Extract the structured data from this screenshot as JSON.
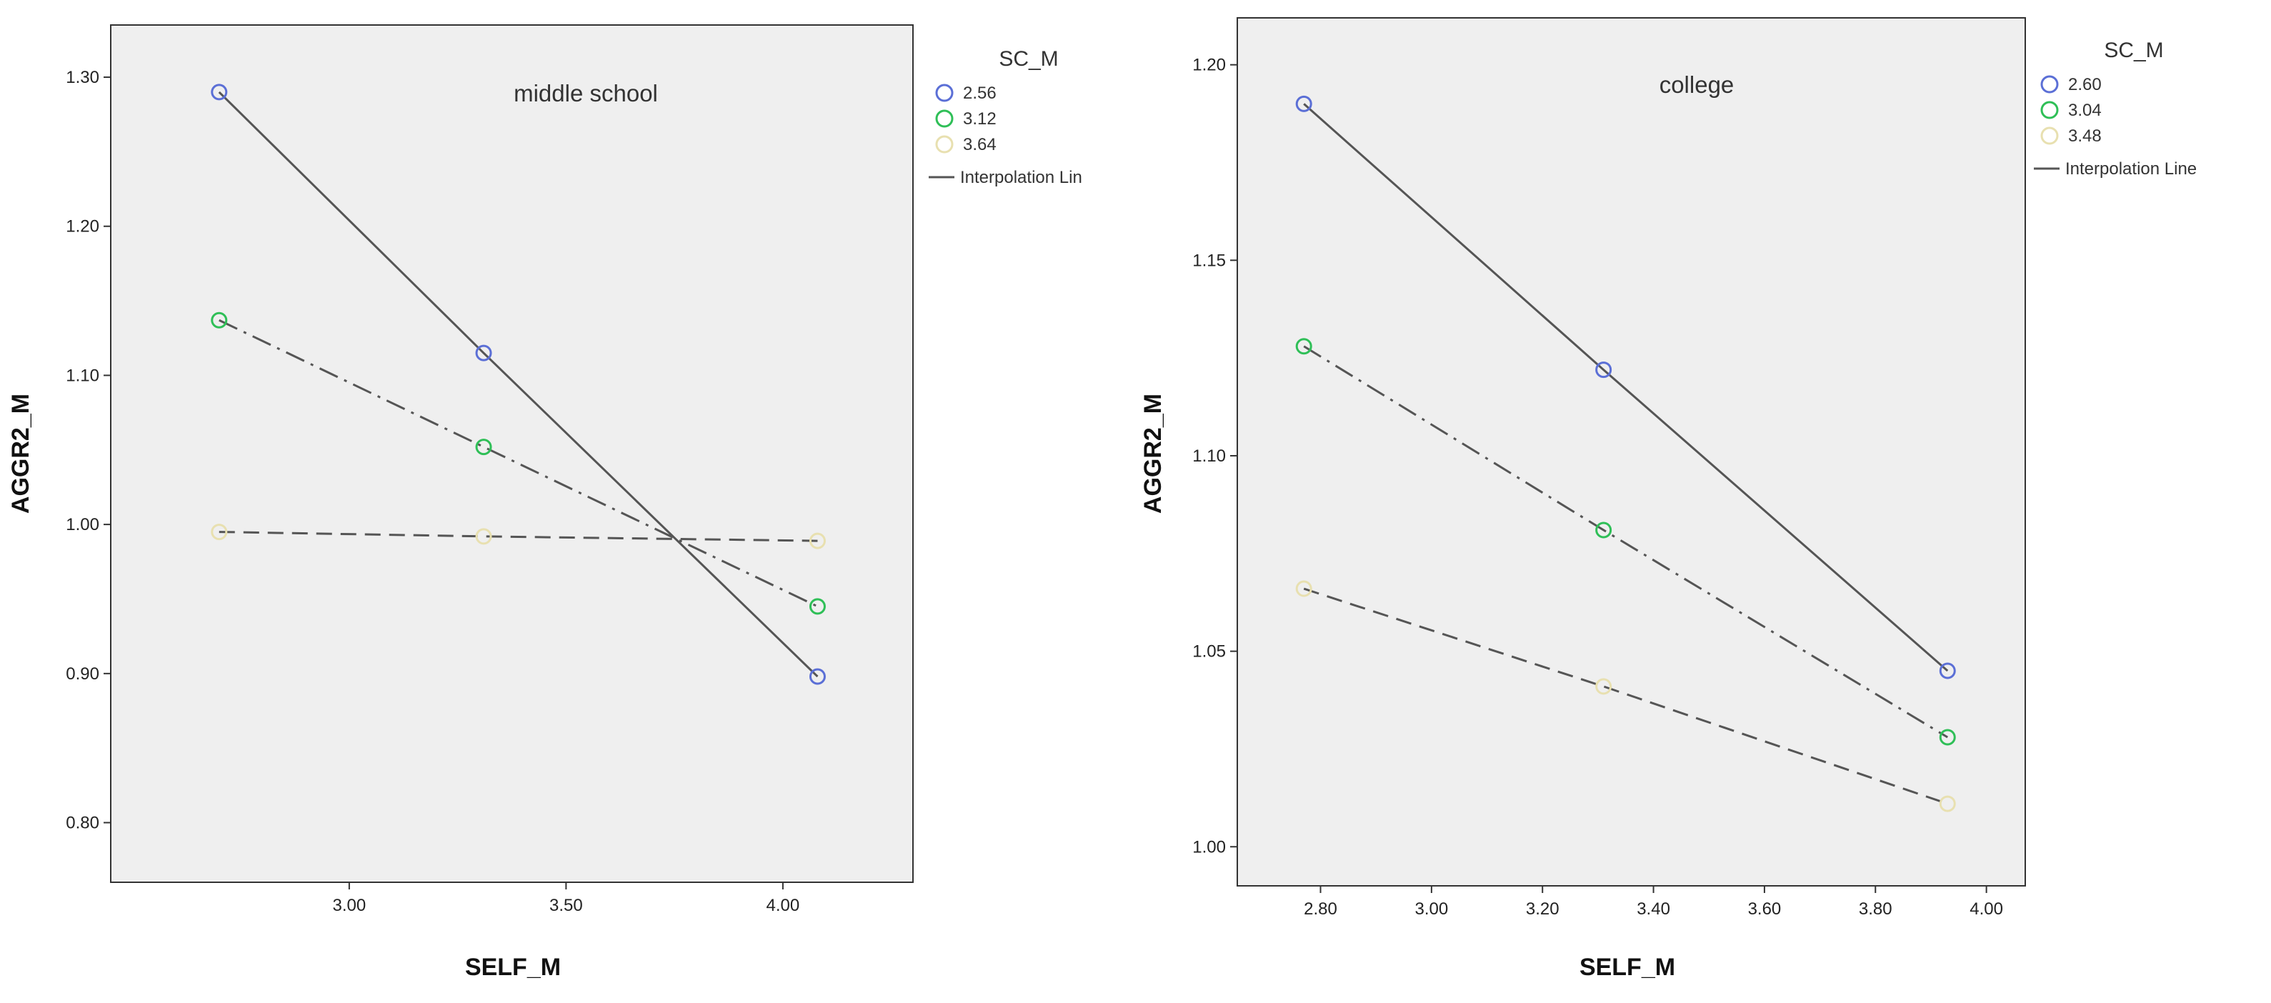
{
  "chart_data": [
    {
      "type": "line",
      "annotation": "middle school",
      "xlabel": "SELF_M",
      "ylabel": "AGGR2_M",
      "xlim": [
        2.45,
        4.3
      ],
      "ylim": [
        0.76,
        1.335
      ],
      "xticks": [
        3.0,
        3.5,
        4.0
      ],
      "xtick_labels": [
        "3.00",
        "3.50",
        "4.00"
      ],
      "yticks": [
        0.8,
        0.9,
        1.0,
        1.1,
        1.2,
        1.3
      ],
      "ytick_labels": [
        "0.80",
        "0.90",
        "1.00",
        "1.10",
        "1.20",
        "1.30"
      ],
      "grid": false,
      "legend": {
        "title": "SC_M",
        "position": "right",
        "entries": [
          "2.56",
          "3.12",
          "3.64"
        ],
        "line_entry": "Interpolation Lin"
      },
      "x": [
        2.7,
        3.31,
        4.08
      ],
      "series": [
        {
          "name": "2.56",
          "values": [
            1.29,
            1.115,
            0.898
          ],
          "marker_color": "#5b6fd6",
          "line_style": "solid"
        },
        {
          "name": "3.12",
          "values": [
            1.137,
            1.052,
            0.945
          ],
          "marker_color": "#2fbf57",
          "line_style": "dashdot"
        },
        {
          "name": "3.64",
          "values": [
            0.995,
            0.992,
            0.989
          ],
          "marker_color": "#e8e0b0",
          "line_style": "dashed"
        }
      ]
    },
    {
      "type": "line",
      "annotation": "college",
      "xlabel": "SELF_M",
      "ylabel": "AGGR2_M",
      "xlim": [
        2.65,
        4.07
      ],
      "ylim": [
        0.99,
        1.212
      ],
      "xticks": [
        2.8,
        3.0,
        3.2,
        3.4,
        3.6,
        3.8,
        4.0
      ],
      "xtick_labels": [
        "2.80",
        "3.00",
        "3.20",
        "3.40",
        "3.60",
        "3.80",
        "4.00"
      ],
      "yticks": [
        1.0,
        1.05,
        1.1,
        1.15,
        1.2
      ],
      "ytick_labels": [
        "1.00",
        "1.05",
        "1.10",
        "1.15",
        "1.20"
      ],
      "grid": false,
      "legend": {
        "title": "SC_M",
        "position": "right",
        "entries": [
          "2.60",
          "3.04",
          "3.48"
        ],
        "line_entry": "Interpolation Line"
      },
      "x": [
        2.77,
        3.31,
        3.93
      ],
      "series": [
        {
          "name": "2.60",
          "values": [
            1.19,
            1.122,
            1.045
          ],
          "marker_color": "#5b6fd6",
          "line_style": "solid"
        },
        {
          "name": "3.04",
          "values": [
            1.128,
            1.081,
            1.028
          ],
          "marker_color": "#2fbf57",
          "line_style": "dashdot"
        },
        {
          "name": "3.48",
          "values": [
            1.066,
            1.041,
            1.011
          ],
          "marker_color": "#e8e0b0",
          "line_style": "dashed"
        }
      ]
    }
  ]
}
